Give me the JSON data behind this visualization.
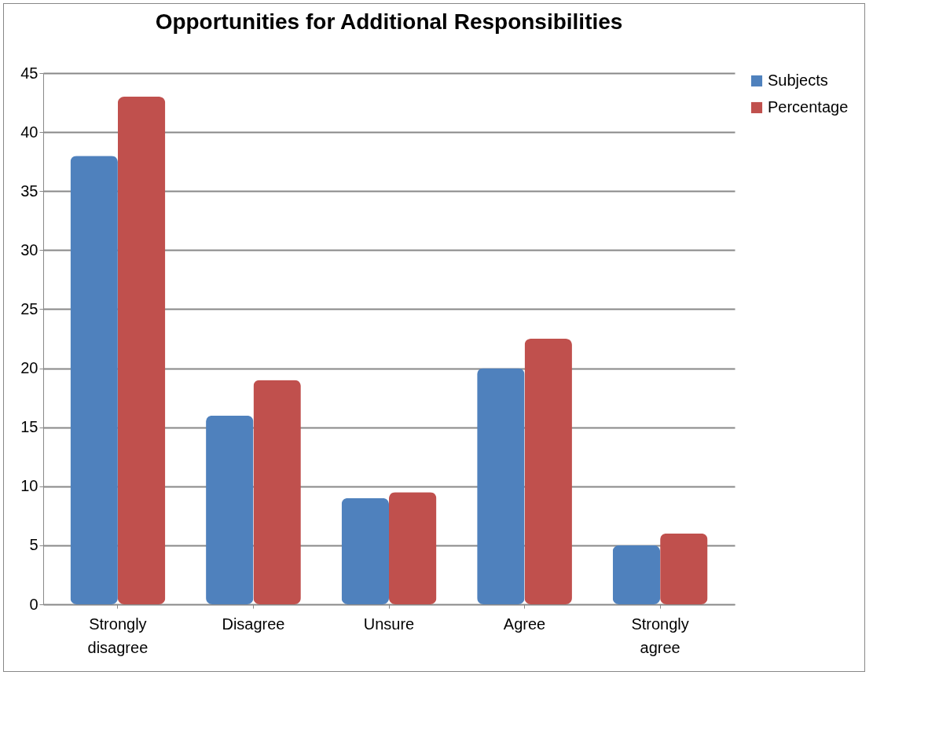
{
  "chart_data": {
    "type": "bar",
    "title": "Opportunities for Additional Responsibilities",
    "categories": [
      "Strongly disagree",
      "Disagree",
      "Unsure",
      "Agree",
      "Strongly agree"
    ],
    "series": [
      {
        "name": "Subjects",
        "color": "#4f81bd",
        "values": [
          38,
          16,
          9,
          20,
          5
        ]
      },
      {
        "name": "Percentage",
        "color": "#c0504d",
        "values": [
          43,
          19,
          9.5,
          22.5,
          6
        ]
      }
    ],
    "ylim": [
      0,
      45
    ],
    "yticks": [
      0,
      5,
      10,
      15,
      20,
      25,
      30,
      35,
      40,
      45
    ],
    "grid": "y",
    "legend": "right"
  }
}
